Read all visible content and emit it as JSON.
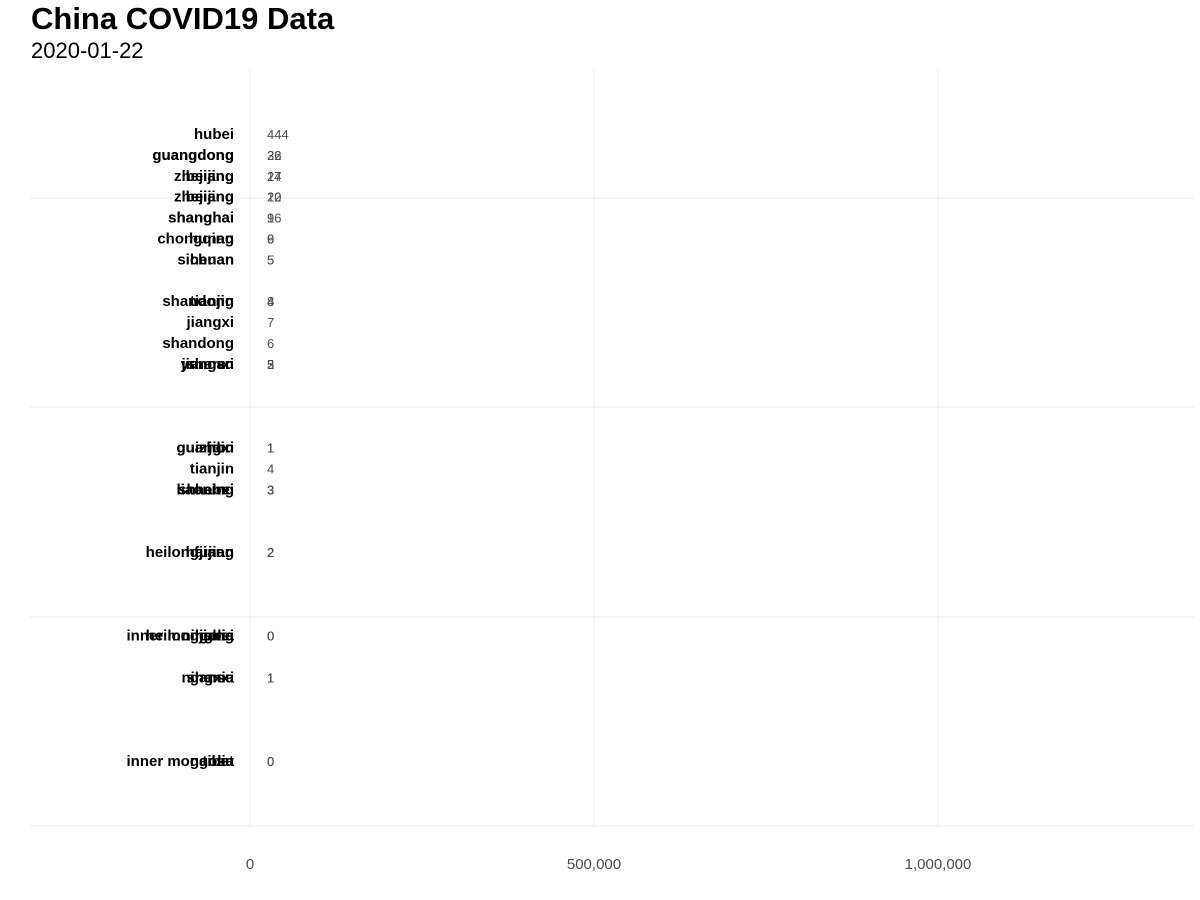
{
  "chart_data": {
    "type": "bar",
    "orientation": "horizontal",
    "title": "China COVID19 Data",
    "subtitle": "2020-01-22",
    "xlabel": "",
    "ylabel": "",
    "xlim": [
      0,
      1360000
    ],
    "x_ticks": [
      0,
      500000,
      1000000
    ],
    "x_tick_labels": [
      "0",
      "500,000",
      "1,000,000"
    ],
    "grid": true,
    "legend": "none",
    "bar_color": "#ffffff",
    "rows": [
      {
        "y": 10,
        "labels": [
          {
            "province": "hubei",
            "value": "444"
          }
        ]
      },
      {
        "y": 9,
        "labels": [
          {
            "province": "guangdong",
            "value": "26"
          },
          {
            "province": "guangdong",
            "value": "32"
          }
        ]
      },
      {
        "y": 8,
        "labels": [
          {
            "province": "zhejiang",
            "value": "27"
          },
          {
            "province": "beijing",
            "value": "14"
          }
        ]
      },
      {
        "y": 7,
        "labels": [
          {
            "province": "zhejiang",
            "value": "10"
          },
          {
            "province": "beijing",
            "value": "22"
          }
        ]
      },
      {
        "y": 6,
        "labels": [
          {
            "province": "shanghai",
            "value": "9"
          },
          {
            "province": "shanghai",
            "value": "16"
          }
        ]
      },
      {
        "y": 5,
        "labels": [
          {
            "province": "chongqing",
            "value": "6"
          },
          {
            "province": "hunan",
            "value": "9"
          }
        ]
      },
      {
        "y": 4,
        "labels": [
          {
            "province": "sichuan",
            "value": "5"
          },
          {
            "province": "henan",
            "value": "5"
          }
        ]
      },
      {
        "y": 2,
        "labels": [
          {
            "province": "shandong",
            "value": "4"
          },
          {
            "province": "tianjin",
            "value": "8"
          }
        ]
      },
      {
        "y": 1,
        "labels": [
          {
            "province": "jiangxi",
            "value": "7"
          }
        ]
      },
      {
        "y": 0,
        "labels": [
          {
            "province": "shandong",
            "value": "6"
          }
        ]
      },
      {
        "y": -1,
        "labels": [
          {
            "province": "shanxi",
            "value": "5"
          },
          {
            "province": "jiangsu",
            "value": "2"
          },
          {
            "province": "yunnan",
            "value": "3"
          }
        ]
      },
      {
        "y": -5,
        "labels": [
          {
            "province": "guizhou",
            "value": "1"
          },
          {
            "province": "jilin",
            "value": "1"
          },
          {
            "province": "guangxi",
            "value": "1"
          }
        ]
      },
      {
        "y": -6,
        "labels": [
          {
            "province": "tianjin",
            "value": "4"
          }
        ]
      },
      {
        "y": -7,
        "labels": [
          {
            "province": "liaoning",
            "value": "3"
          },
          {
            "province": "hebei",
            "value": "3"
          },
          {
            "province": "shaanxi",
            "value": "3"
          }
        ]
      },
      {
        "y": -10,
        "labels": [
          {
            "province": "heilongjiang",
            "value": "2"
          },
          {
            "province": "hainan",
            "value": "2"
          },
          {
            "province": "fujian",
            "value": "2"
          }
        ]
      },
      {
        "y": -14,
        "labels": [
          {
            "province": "inner mongolia",
            "value": "0"
          },
          {
            "province": "heilongjiang",
            "value": "0"
          },
          {
            "province": "ningxia",
            "value": "0"
          },
          {
            "province": "hebei",
            "value": "0"
          }
        ]
      },
      {
        "y": -16,
        "labels": [
          {
            "province": "ningxia",
            "value": "1"
          },
          {
            "province": "shanxi",
            "value": "1"
          },
          {
            "province": "gansu",
            "value": "1"
          }
        ]
      },
      {
        "y": -20,
        "labels": [
          {
            "province": "inner mongolia",
            "value": "0"
          },
          {
            "province": "tibet",
            "value": "0"
          },
          {
            "province": "gansu",
            "value": "0"
          }
        ]
      }
    ]
  }
}
